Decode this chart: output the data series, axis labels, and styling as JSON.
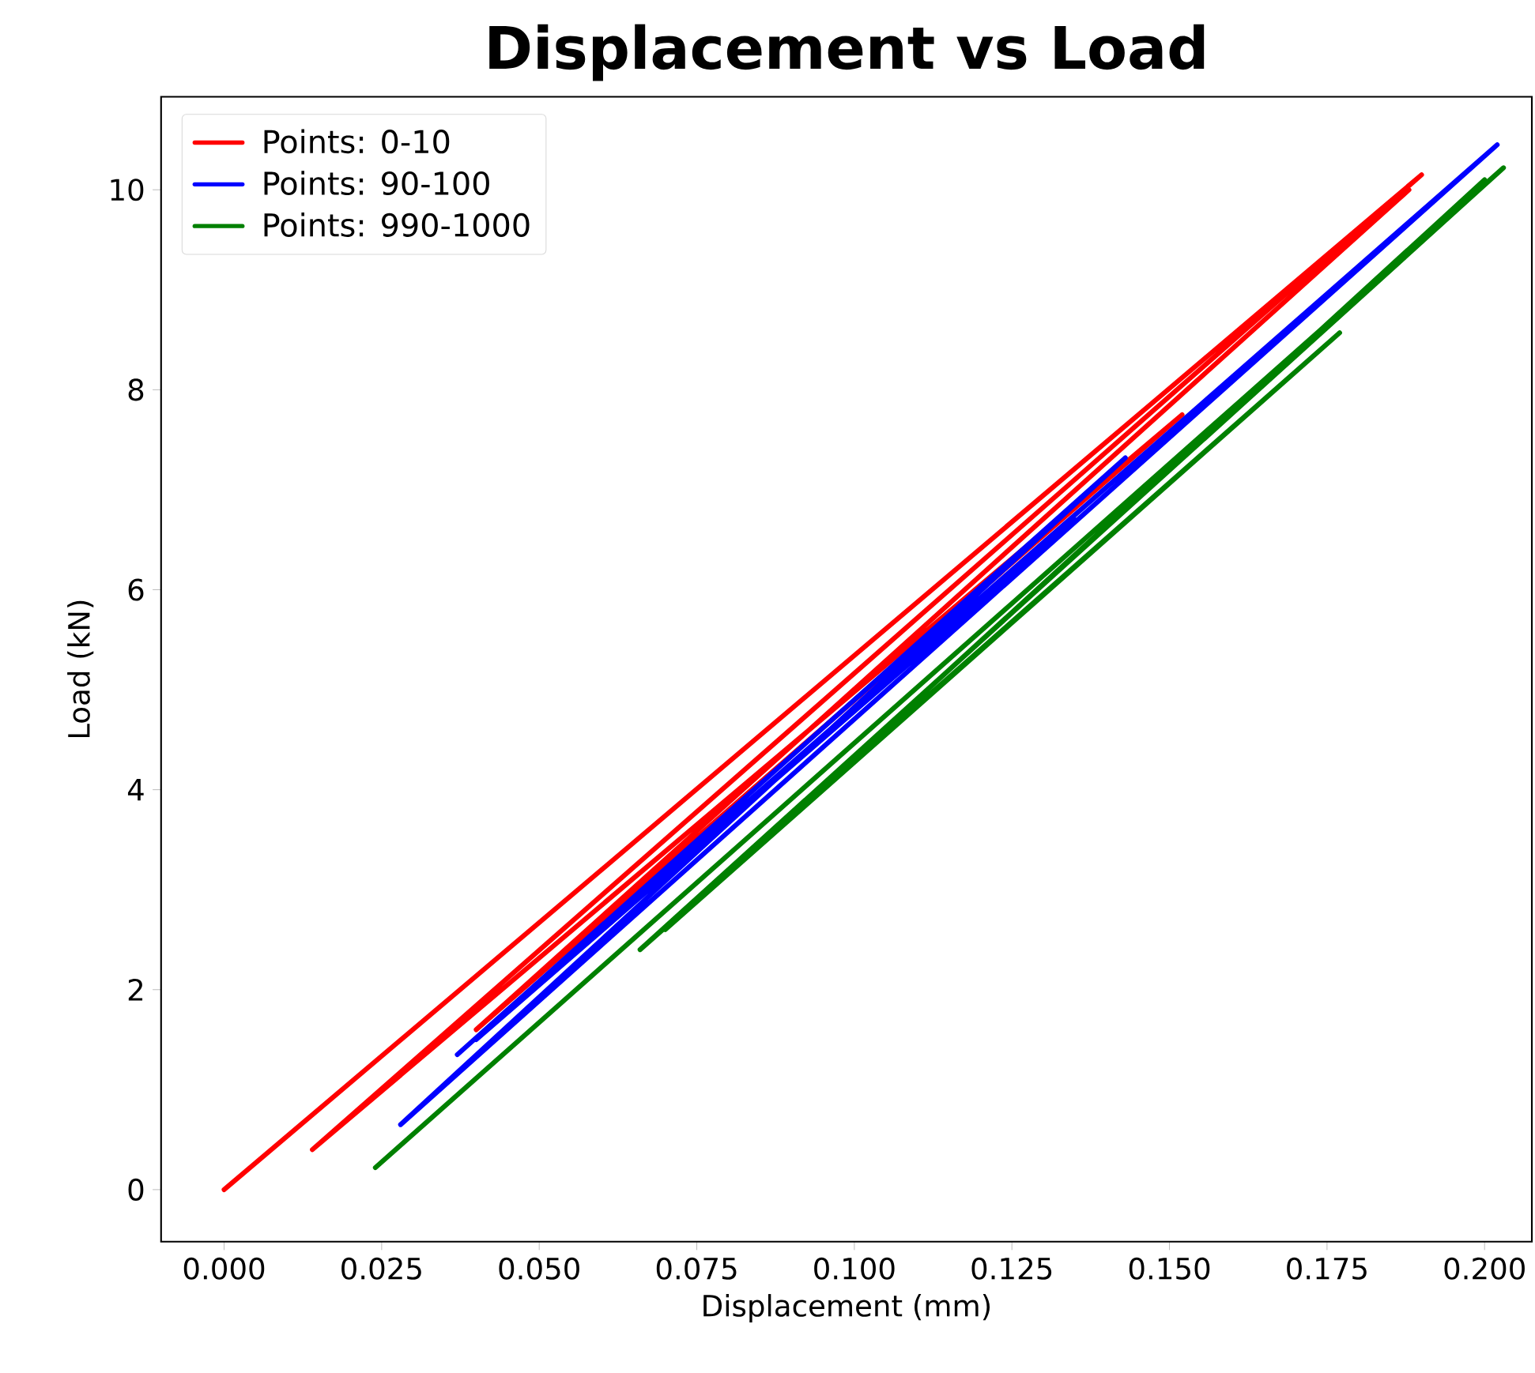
{
  "chart_data": {
    "type": "line",
    "title": "Displacement vs Load",
    "xlabel": "Displacement (mm)",
    "ylabel": "Load (kN)",
    "xlim": [
      -0.01,
      0.2075
    ],
    "ylim": [
      -0.52,
      10.93
    ],
    "xticks": [
      {
        "value": 0,
        "label": "0.000"
      },
      {
        "value": 0.025,
        "label": "0.025"
      },
      {
        "value": 0.05,
        "label": "0.050"
      },
      {
        "value": 0.075,
        "label": "0.075"
      },
      {
        "value": 0.1,
        "label": "0.100"
      },
      {
        "value": 0.125,
        "label": "0.125"
      },
      {
        "value": 0.15,
        "label": "0.150"
      },
      {
        "value": 0.175,
        "label": "0.175"
      },
      {
        "value": 0.2,
        "label": "0.200"
      }
    ],
    "yticks": [
      0,
      2,
      4,
      6,
      8,
      10
    ],
    "grid": false,
    "legend": "top left",
    "marker": "none",
    "line_style": "solid",
    "series": [
      {
        "name": "Points: 0-10",
        "color": "#ff0000",
        "x": [
          0,
          0.19,
          0.014,
          0.152,
          0.04,
          0.188
        ],
        "values": [
          0,
          10.15,
          0.4,
          7.75,
          1.6,
          10.0
        ]
      },
      {
        "name": "Points: 90-100",
        "color": "#0000ff",
        "x": [
          0.037,
          0.143,
          0.028,
          0.202,
          0.04,
          0.135
        ],
        "values": [
          1.35,
          7.32,
          0.65,
          10.45,
          1.5,
          6.7
        ]
      },
      {
        "name": "Points: 990-1000",
        "color": "#008000",
        "x": [
          0.024,
          0.203,
          0.066,
          0.177,
          0.07,
          0.2
        ],
        "values": [
          0.22,
          10.22,
          2.4,
          8.57,
          2.6,
          10.1
        ]
      }
    ]
  }
}
